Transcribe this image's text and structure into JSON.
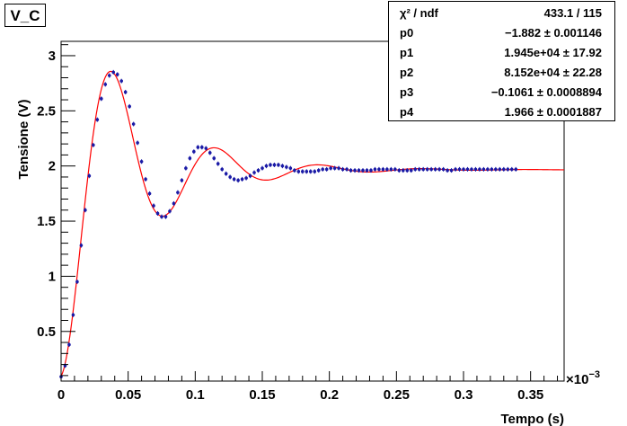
{
  "title": "V_C",
  "stats": {
    "header_label": "χ² / ndf",
    "header_value": "433.1 / 115",
    "params": [
      {
        "name": "p0",
        "value": "−1.882 ± 0.001146"
      },
      {
        "name": "p1",
        "value": "1.945e+04 ± 17.92"
      },
      {
        "name": "p2",
        "value": "8.152e+04 ± 22.28"
      },
      {
        "name": "p3",
        "value": "−0.1061 ± 0.0008894"
      },
      {
        "name": "p4",
        "value": "1.966 ± 0.0001887"
      }
    ]
  },
  "colors": {
    "fit": "#ff0000",
    "points": "#1a1aa6",
    "axis": "#000000"
  },
  "chart_data": {
    "type": "scatter",
    "xlabel": "Tempo (s)",
    "ylabel": "Tensione (V)",
    "x_multiplier_label": "×10",
    "x_multiplier_exp": "−3",
    "xlim": [
      0,
      0.375
    ],
    "ylim": [
      0.05,
      3.13
    ],
    "x_ticks": [
      "0",
      "0.05",
      "0.1",
      "0.15",
      "0.2",
      "0.25",
      "0.3",
      "0.35"
    ],
    "x_tick_values": [
      0,
      0.05,
      0.1,
      0.15,
      0.2,
      0.25,
      0.3,
      0.35
    ],
    "y_ticks": [
      "0.5",
      "1",
      "1.5",
      "2",
      "2.5",
      "3"
    ],
    "y_tick_values": [
      0.5,
      1,
      1.5,
      2,
      2.5,
      3
    ],
    "fit_params": {
      "p0": -1.882,
      "p1": 19450,
      "p2": 81520,
      "p3": -0.1061,
      "p4": 1.966
    },
    "series": [
      {
        "x": [
          0,
          0.003,
          0.006,
          0.009,
          0.012,
          0.015,
          0.018,
          0.021,
          0.024,
          0.027,
          0.03,
          0.033,
          0.036,
          0.039,
          0.042,
          0.045,
          0.048,
          0.051,
          0.054,
          0.057,
          0.06,
          0.063,
          0.066,
          0.069,
          0.072,
          0.075,
          0.078,
          0.081,
          0.084,
          0.087,
          0.09,
          0.093,
          0.096,
          0.099,
          0.102,
          0.105,
          0.108,
          0.111,
          0.114,
          0.117,
          0.12,
          0.123,
          0.126,
          0.129,
          0.132,
          0.135,
          0.138,
          0.141,
          0.144,
          0.147,
          0.15,
          0.153,
          0.156,
          0.159,
          0.162,
          0.165,
          0.168,
          0.171,
          0.174,
          0.177,
          0.18,
          0.183,
          0.186,
          0.189,
          0.192,
          0.195,
          0.198,
          0.201,
          0.204,
          0.207,
          0.21,
          0.213,
          0.216,
          0.219,
          0.222,
          0.225,
          0.228,
          0.231,
          0.234,
          0.237,
          0.24,
          0.243,
          0.246,
          0.249,
          0.252,
          0.255,
          0.258,
          0.261,
          0.264,
          0.267,
          0.27,
          0.273,
          0.276,
          0.279,
          0.282,
          0.285,
          0.288,
          0.291,
          0.294,
          0.297,
          0.3,
          0.303,
          0.306,
          0.309,
          0.312,
          0.315,
          0.318,
          0.321,
          0.324,
          0.327,
          0.33,
          0.333,
          0.336,
          0.339
        ],
        "y": [
          0.09,
          0.19,
          0.38,
          0.65,
          0.95,
          1.28,
          1.6,
          1.91,
          2.19,
          2.42,
          2.61,
          2.74,
          2.82,
          2.85,
          2.83,
          2.77,
          2.67,
          2.54,
          2.38,
          2.21,
          2.04,
          1.88,
          1.75,
          1.64,
          1.57,
          1.54,
          1.54,
          1.59,
          1.66,
          1.76,
          1.87,
          1.98,
          2.07,
          2.13,
          2.17,
          2.17,
          2.16,
          2.12,
          2.07,
          2.02,
          1.97,
          1.93,
          1.9,
          1.88,
          1.87,
          1.88,
          1.89,
          1.91,
          1.94,
          1.96,
          1.98,
          2.0,
          2.01,
          2.01,
          2.01,
          2.0,
          1.99,
          1.98,
          1.96,
          1.95,
          1.95,
          1.95,
          1.95,
          1.95,
          1.96,
          1.97,
          1.97,
          1.98,
          1.98,
          1.98,
          1.97,
          1.97,
          1.96,
          1.96,
          1.96,
          1.96,
          1.96,
          1.96,
          1.97,
          1.97,
          1.97,
          1.97,
          1.97,
          1.97,
          1.96,
          1.96,
          1.96,
          1.96,
          1.97,
          1.97,
          1.97,
          1.97,
          1.97,
          1.97,
          1.97,
          1.97,
          1.96,
          1.96,
          1.97,
          1.97,
          1.97,
          1.97,
          1.97,
          1.97,
          1.97,
          1.97,
          1.97,
          1.97,
          1.97,
          1.97,
          1.97,
          1.97,
          1.97,
          1.97
        ]
      }
    ]
  }
}
